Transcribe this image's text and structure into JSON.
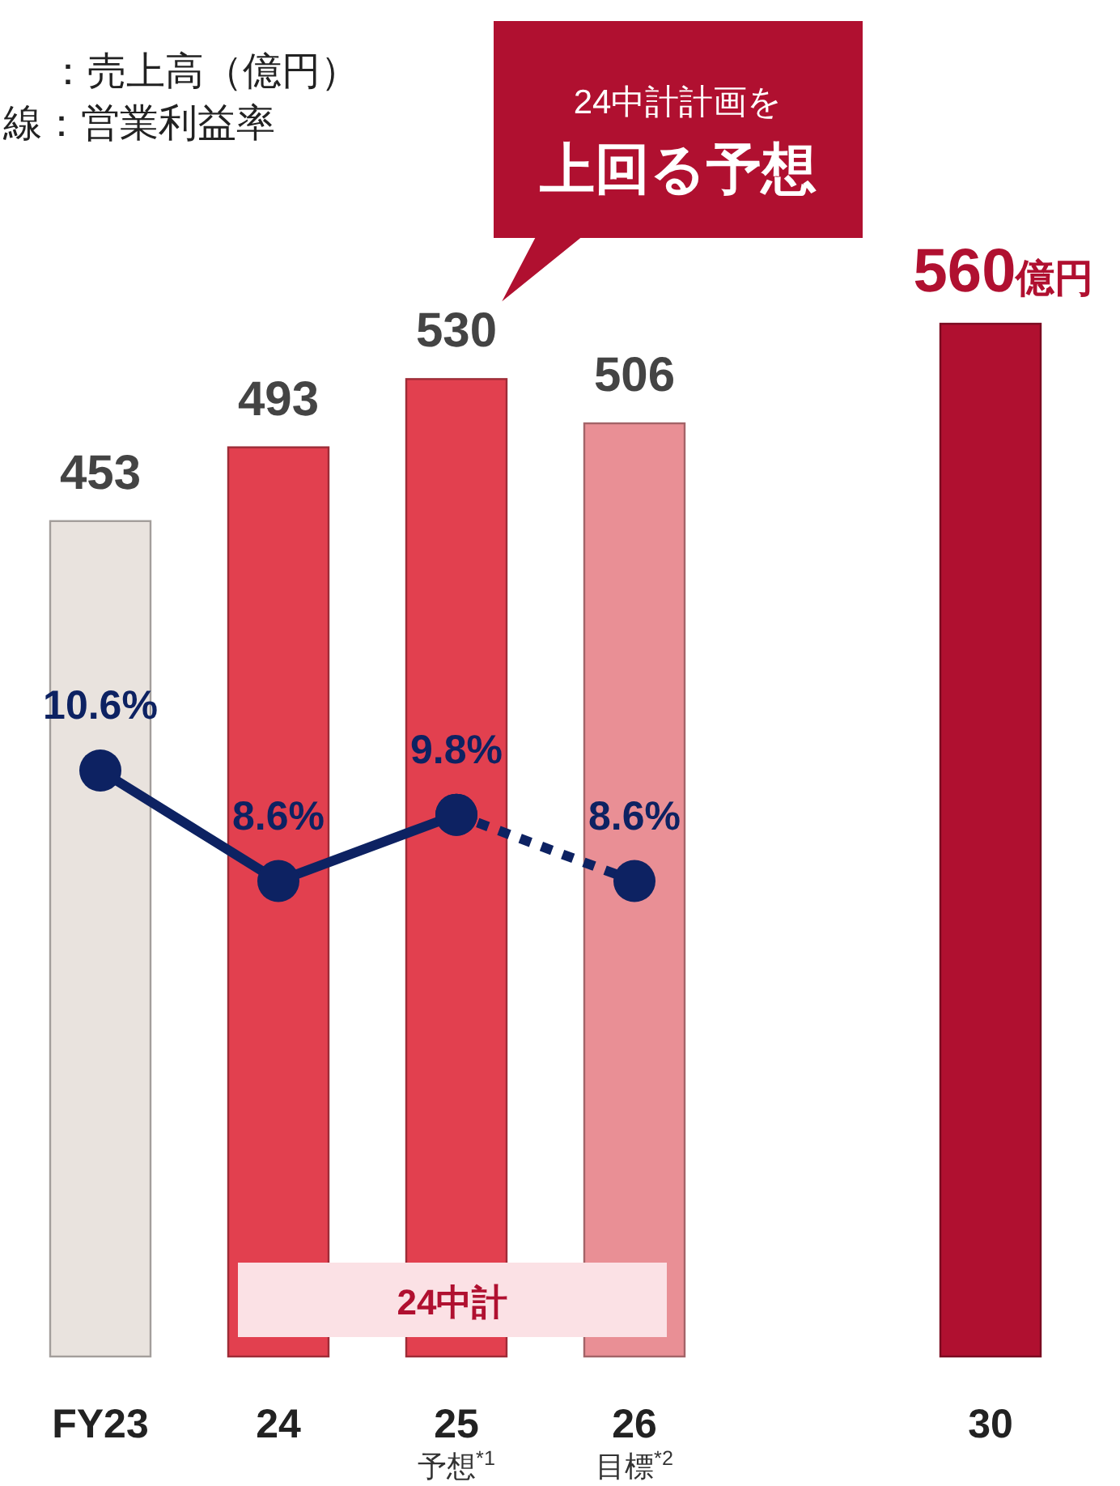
{
  "chart_data": {
    "type": "bar",
    "categories": [
      "FY23",
      "24",
      "25",
      "26",
      null,
      "30"
    ],
    "series": [
      {
        "colors": [
          "#e9e3de",
          "#e2404f",
          "#e2404f",
          "#e98f95",
          null,
          "#b01030"
        ],
        "values": [
          453,
          493,
          530,
          506,
          null,
          560
        ],
        "value_labels": [
          "453",
          "493",
          "530",
          "506",
          null,
          "560億円"
        ]
      },
      {
        "type": "line",
        "axis": "y2",
        "color": "#0d2262",
        "marker": "circle",
        "line_style": "solid",
        "values": [
          10.6,
          8.6,
          9.8,
          null,
          null,
          null
        ],
        "value_labels": [
          "10.6%",
          "8.6%",
          "9.8%",
          null,
          null,
          null
        ]
      },
      {
        "type": "line",
        "axis": "y2",
        "color": "#0d2262",
        "marker": "circle",
        "line_style": "dotted",
        "values": [
          null,
          null,
          9.8,
          8.6,
          null,
          null
        ],
        "value_labels": [
          null,
          null,
          null,
          "8.6%",
          null,
          null
        ]
      }
    ],
    "annotations": [
      "：売上高（億円）",
      "線：営業利益率",
      "24中計計画を",
      "上回る予想",
      "予想$^{*1}$",
      "目標$^{*2}$"
    ],
    "bands": [
      {
        "axis": "x",
        "from": "24",
        "to": "26",
        "label": "24中計",
        "color": "#fbe1e5"
      }
    ]
  }
}
